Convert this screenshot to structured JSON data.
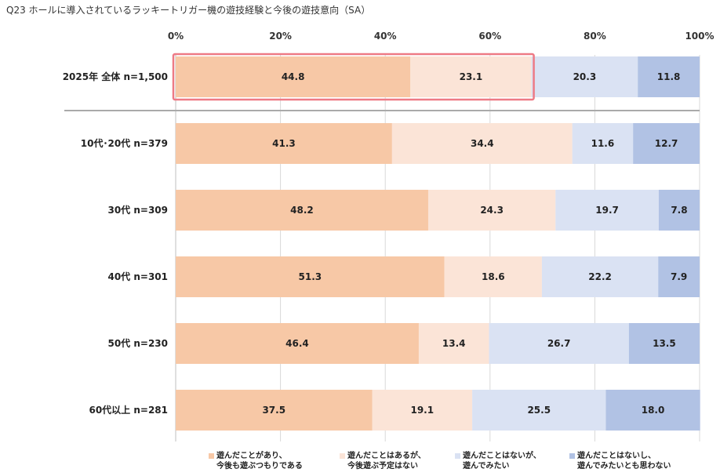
{
  "title": "Q23 ホールに導入されているラッキートリガー機の遊技経験と今後の遊技意向（SA）",
  "colors": [
    "#f7c8a6",
    "#fbe4d7",
    "#dae2f3",
    "#b1c2e4"
  ],
  "highlight_color": "#ee7a85",
  "separator_color": "#aaaaaa",
  "chart_data": {
    "type": "bar",
    "orientation": "horizontal",
    "stacked": true,
    "title": "Q23 ホールに導入されているラッキートリガー機の遊技経験と今後の遊技意向（SA）",
    "xlim": [
      0,
      100
    ],
    "ticks": [
      0,
      20,
      40,
      60,
      80,
      100
    ],
    "tick_labels": [
      "0%",
      "20%",
      "40%",
      "60%",
      "80%",
      "100%"
    ],
    "grid": true,
    "categories": [
      "2025年 全体 n=1,500",
      "10代･20代 n=379",
      "30代 n=309",
      "40代 n=301",
      "50代 n=230",
      "60代以上 n=281"
    ],
    "series": [
      {
        "name": "遊んだことがあり、今後も遊ぶつもりである",
        "legend_lines": [
          "遊んだことがあり、",
          "今後も遊ぶつもりである"
        ],
        "values": [
          44.8,
          41.3,
          48.2,
          51.3,
          46.4,
          37.5
        ]
      },
      {
        "name": "遊んだことはあるが、今後遊ぶ予定はない",
        "legend_lines": [
          "遊んだことはあるが、",
          "今後遊ぶ予定はない"
        ],
        "values": [
          23.1,
          34.4,
          24.3,
          18.6,
          13.4,
          19.1
        ]
      },
      {
        "name": "遊んだことはないが、遊んでみたい",
        "legend_lines": [
          "遊んだことはないが、",
          "遊んでみたい"
        ],
        "values": [
          20.3,
          11.6,
          19.7,
          22.2,
          26.7,
          25.5
        ]
      },
      {
        "name": "遊んだことはないし、遊んでみたいとも思わない",
        "legend_lines": [
          "遊んだことはないし、",
          "遊んでみたいとも思わない"
        ],
        "values": [
          11.8,
          12.7,
          7.8,
          7.9,
          13.5,
          18.0
        ]
      }
    ],
    "legend_position": "bottom",
    "highlight": {
      "category_index": 0,
      "series_indices": [
        0,
        1
      ]
    }
  }
}
